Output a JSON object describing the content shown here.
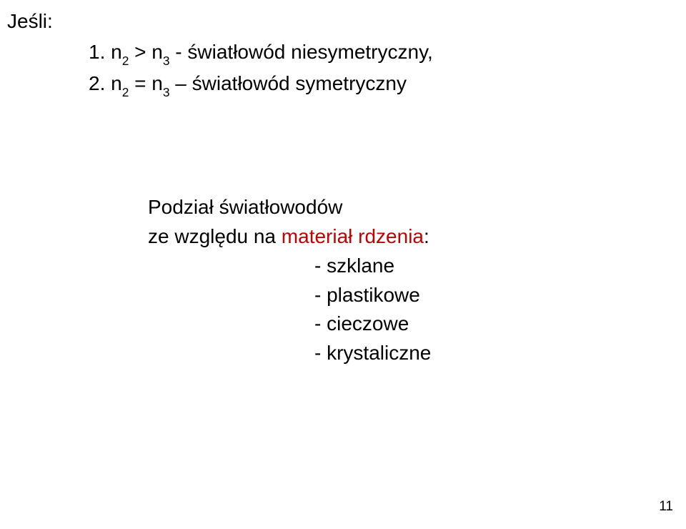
{
  "colors": {
    "text": "#000000",
    "accent_red": "#c10000",
    "background": "#ffffff"
  },
  "typography": {
    "body_fontsize_pt": 21,
    "pagenum_fontsize_pt": 14,
    "font_family": "Verdana"
  },
  "heading": "Jeśli:",
  "definitions": {
    "line1": {
      "num": "1. ",
      "lhs_n": "n",
      "lhs_sub": "2",
      "op": " > ",
      "rhs_n": "n",
      "rhs_sub": "3",
      "tail": " - światłowód niesymetryczny,"
    },
    "line2": {
      "num": "2. ",
      "lhs_n": "n",
      "lhs_sub": "2",
      "op": " = ",
      "rhs_n": "n",
      "rhs_sub": "3",
      "tail": " – światłowód symetryczny"
    }
  },
  "section": {
    "title_line1": "Podział światłowodów",
    "title_line2_pre": "ze względu na ",
    "title_line2_red": "materiał rdzenia",
    "title_line2_colon": ":",
    "items": [
      "- szklane",
      "- plastikowe",
      "- cieczowe",
      "- krystaliczne"
    ]
  },
  "page_number": "11"
}
